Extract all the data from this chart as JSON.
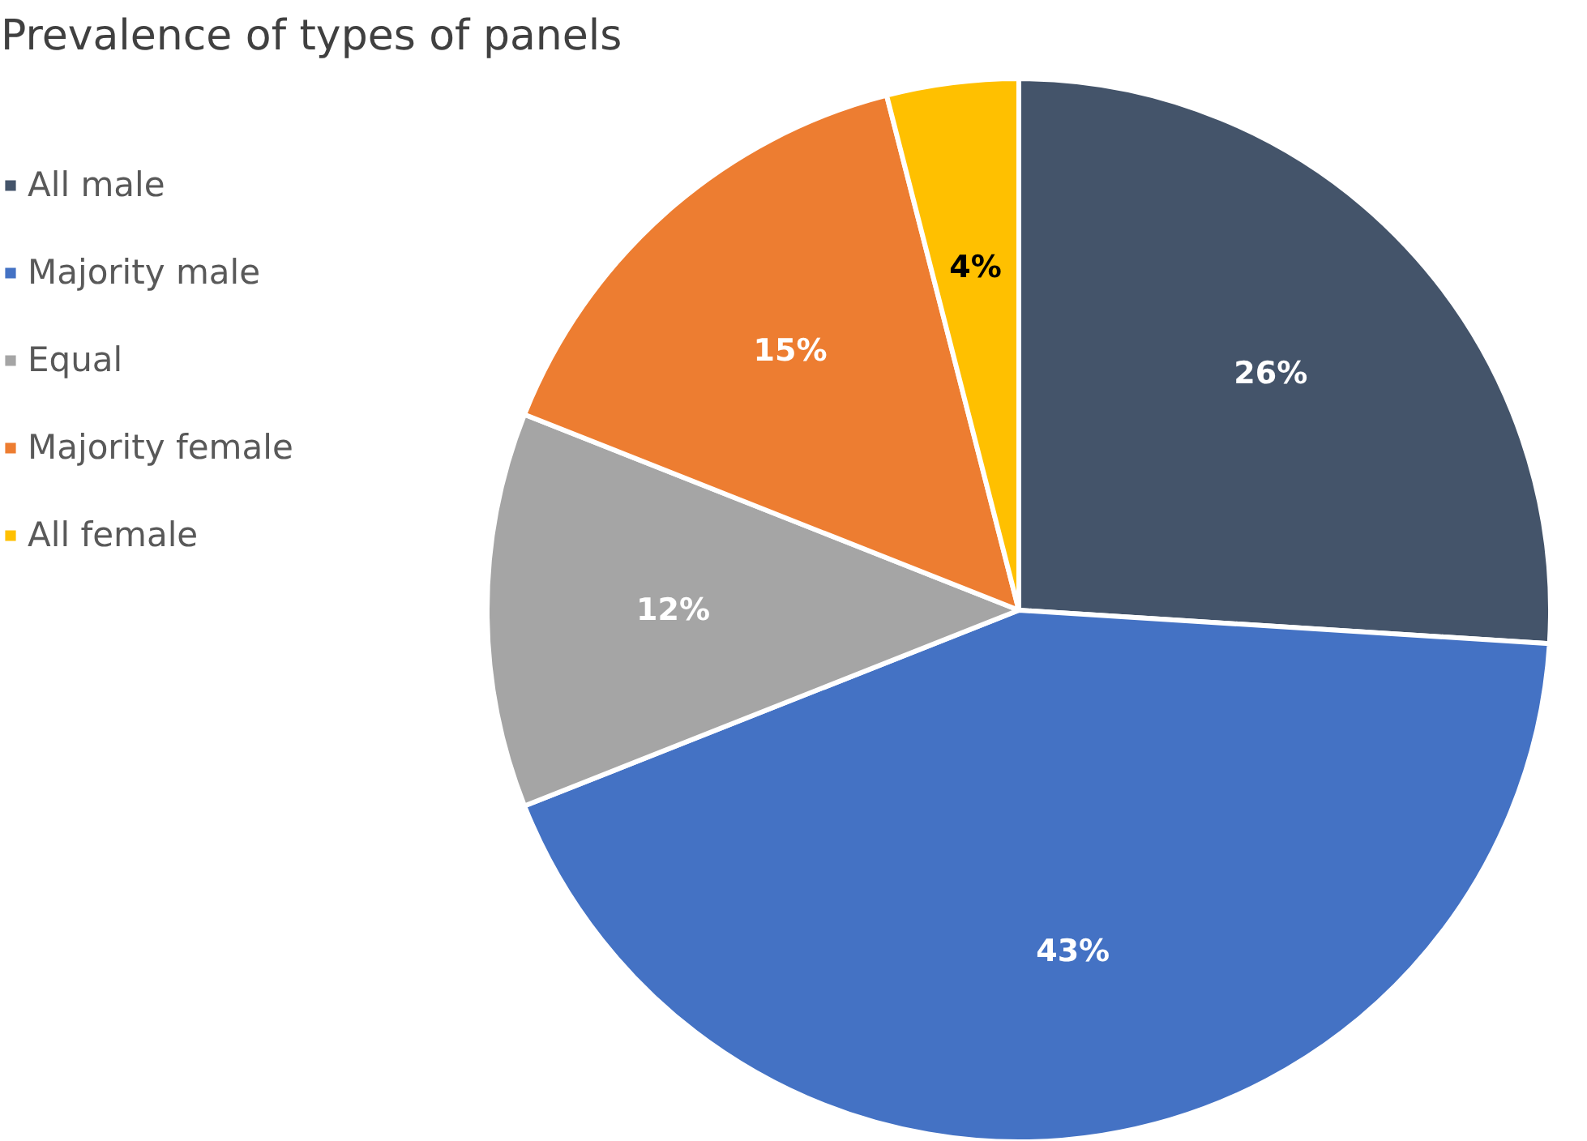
{
  "chart_data": {
    "type": "pie",
    "title": "Prevalence of types of panels",
    "categories": [
      "All male",
      "Majority male",
      "Equal",
      "Majority female",
      "All female"
    ],
    "values": [
      26,
      43,
      12,
      15,
      4
    ],
    "colors": [
      "#44546a",
      "#4472c4",
      "#a5a5a5",
      "#ed7d31",
      "#ffc000"
    ],
    "value_labels": [
      "26%",
      "43%",
      "12%",
      "15%",
      "4%"
    ],
    "legend": "left"
  }
}
